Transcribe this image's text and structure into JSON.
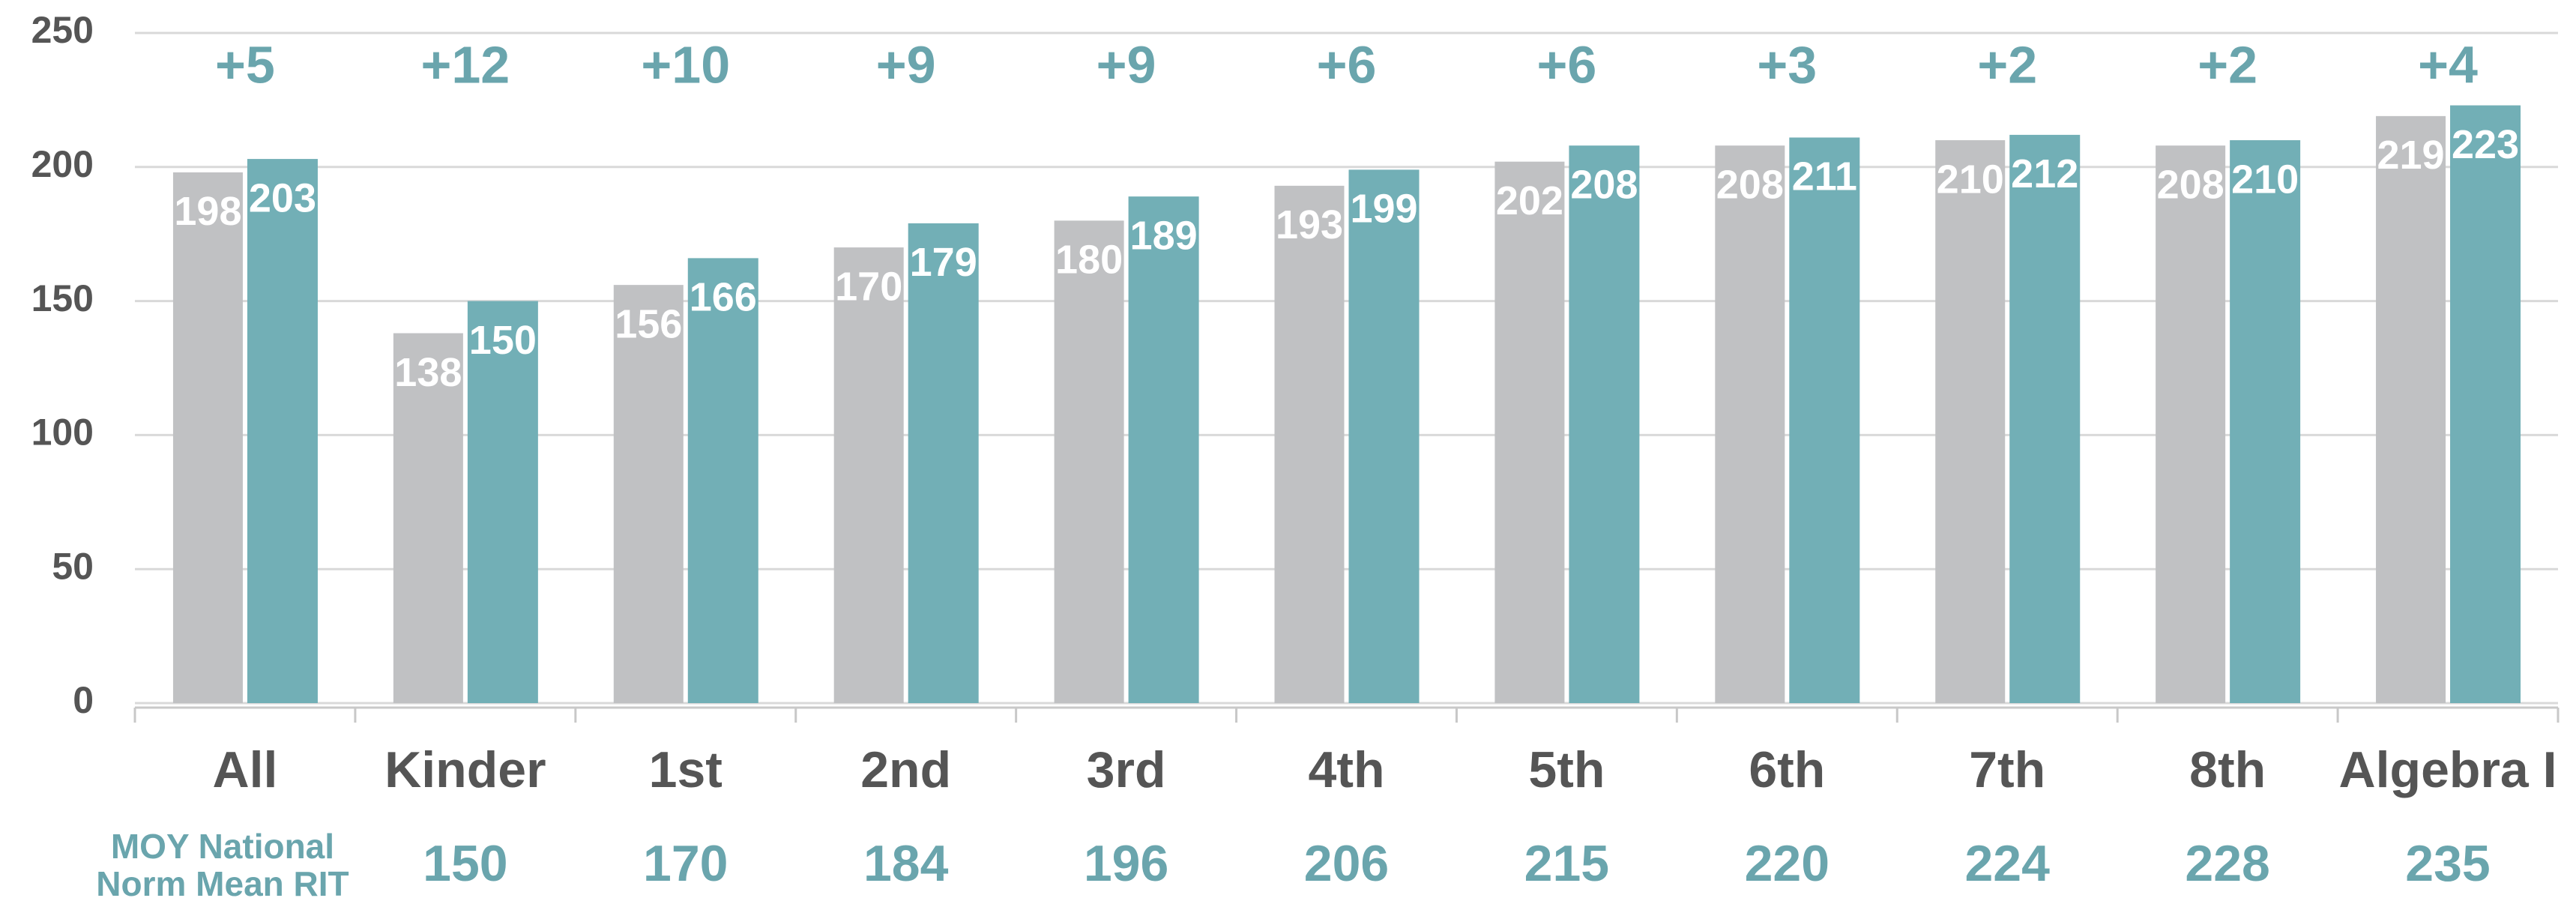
{
  "chart_data": {
    "type": "bar",
    "categories": [
      "All",
      "Kinder",
      "1st",
      "2nd",
      "3rd",
      "4th",
      "5th",
      "6th",
      "7th",
      "8th",
      "Algebra I"
    ],
    "series": [
      {
        "color": "#c0c1c3",
        "values": [
          198,
          138,
          156,
          170,
          180,
          193,
          202,
          208,
          210,
          208,
          219
        ]
      },
      {
        "color": "#72afb6",
        "values": [
          203,
          150,
          166,
          179,
          189,
          199,
          208,
          211,
          212,
          210,
          223
        ]
      }
    ],
    "annotations": [
      "+5",
      "+12",
      "+10",
      "+9",
      "+9",
      "+6",
      "+6",
      "+3",
      "+2",
      "+2",
      "+4"
    ],
    "norm": {
      "label": [
        "MOY National",
        "Norm Mean RIT"
      ],
      "values": [
        null,
        150,
        170,
        184,
        196,
        206,
        215,
        220,
        224,
        228,
        235
      ]
    },
    "ylim": [
      0,
      250
    ],
    "yticks": [
      0,
      50,
      100,
      150,
      200,
      250
    ],
    "grid": true
  }
}
